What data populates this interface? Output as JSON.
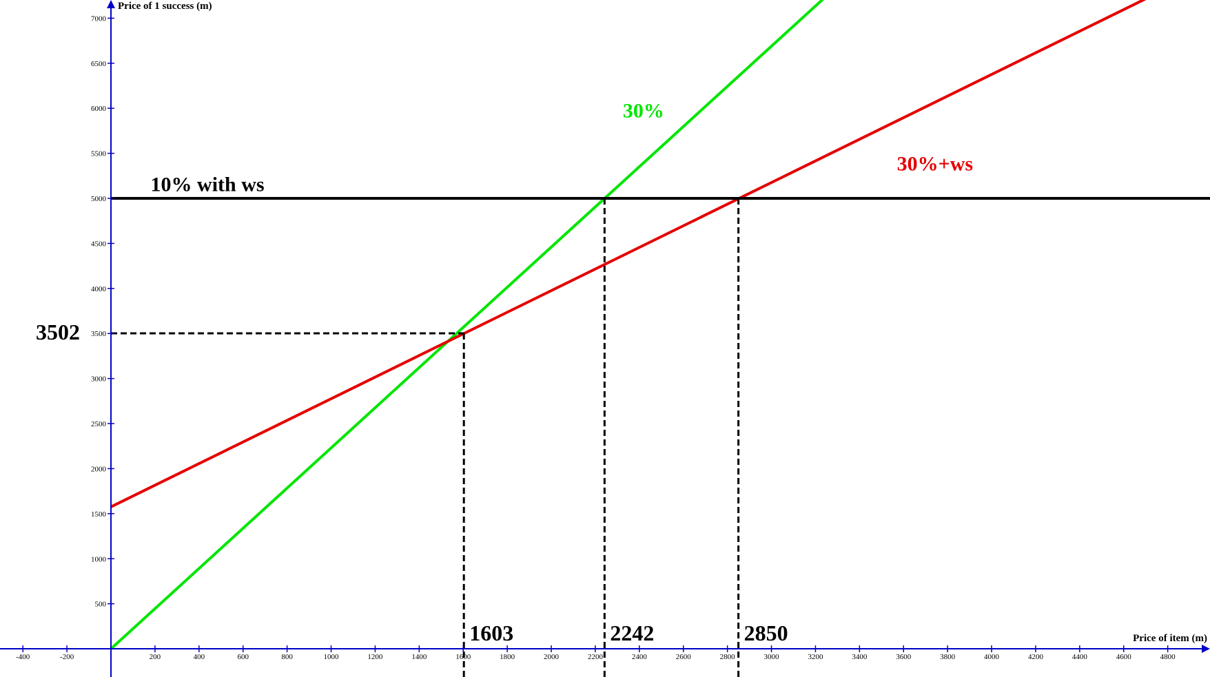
{
  "chart_data": {
    "type": "line",
    "xlabel": "Price of item (m)",
    "ylabel": "Price of 1 success (m)",
    "xlim": [
      -504,
      4992
    ],
    "ylim": [
      -313,
      7202
    ],
    "x_ticks": [
      -400,
      -200,
      200,
      400,
      600,
      800,
      1000,
      1200,
      1400,
      1600,
      1800,
      2000,
      2200,
      2400,
      2600,
      2800,
      3000,
      3200,
      3400,
      3600,
      3800,
      4000,
      4200,
      4400,
      4600,
      4800
    ],
    "y_ticks": [
      500,
      1000,
      1500,
      2000,
      2500,
      3000,
      3500,
      4000,
      4500,
      5000,
      5500,
      6000,
      6500,
      7000
    ],
    "grid": false,
    "axis_color": "#0000c8",
    "series": [
      {
        "name": "30%",
        "color": "#00e600",
        "x": [
          0,
          4992
        ],
        "y": [
          0,
          11131
        ],
        "label_at": [
          2325,
          5900
        ]
      },
      {
        "name": "30%+ws",
        "color": "#e60000",
        "x": [
          0,
          4992
        ],
        "y": [
          1576,
          7566
        ],
        "label_at": [
          3570,
          5310
        ]
      },
      {
        "name": "10% with ws",
        "color": "#000000",
        "x": [
          0,
          4992
        ],
        "y": [
          5000,
          5000
        ],
        "label_at": [
          180,
          5080
        ]
      }
    ],
    "markers": [
      {
        "x": 1603,
        "y": 3502,
        "x_label": "1603",
        "y_label": "3502"
      },
      {
        "x": 2242,
        "y": 5000,
        "x_label": "2242"
      },
      {
        "x": 2850,
        "y": 5000,
        "x_label": "2850"
      }
    ]
  }
}
